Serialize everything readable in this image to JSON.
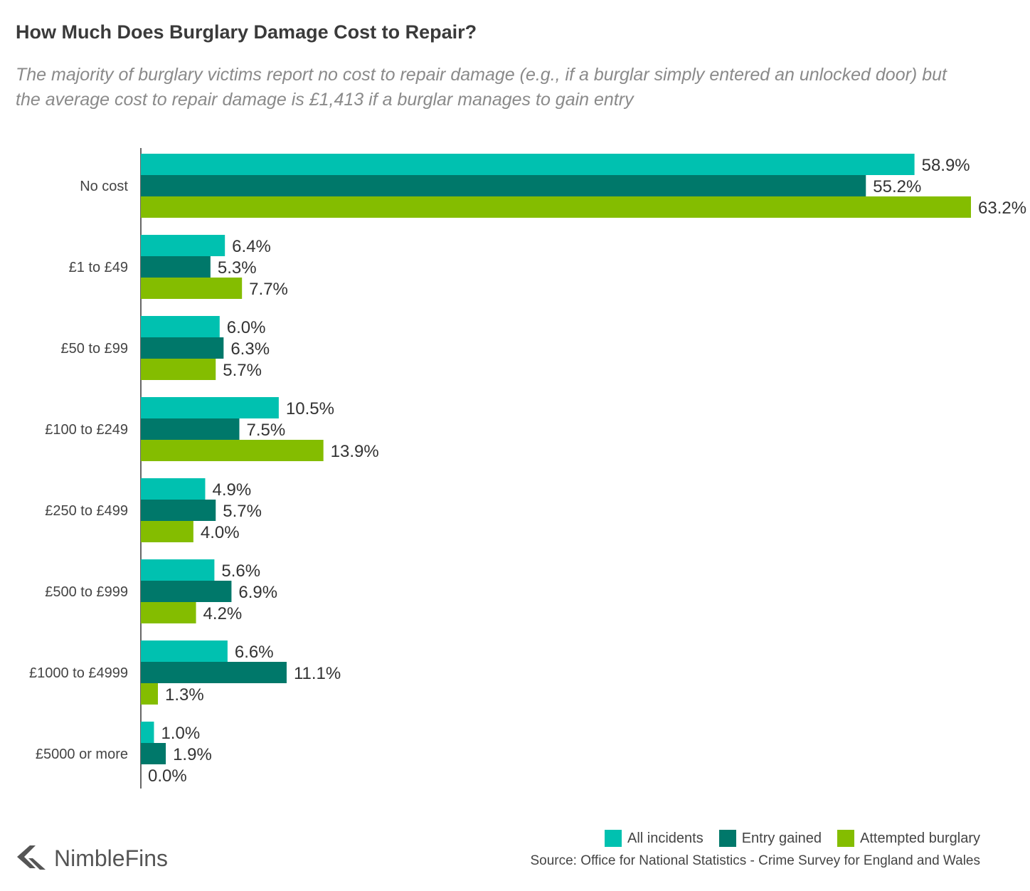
{
  "chart_data": {
    "type": "bar",
    "orientation": "horizontal",
    "title": "How Much Does Burglary Damage Cost to Repair?",
    "subtitle": "The majority of burglary victims report no cost to repair damage (e.g., if a burglar simply entered an unlocked door) but the average cost to repair damage is £1,413 if a burglar manages to gain entry",
    "categories": [
      "No cost",
      "£1 to £49",
      "£50 to £99",
      "£100 to £249",
      "£250 to £499",
      "£500 to £999",
      "£1000 to £4999",
      "£5000 or more"
    ],
    "series": [
      {
        "name": "All incidents",
        "color": "#00c1b0",
        "values": [
          58.9,
          6.4,
          6.0,
          10.5,
          4.9,
          5.6,
          6.6,
          1.0
        ],
        "labels": [
          "58.9%",
          "6.4%",
          "6.0%",
          "10.5%",
          "4.9%",
          "5.6%",
          "6.6%",
          "1.0%"
        ]
      },
      {
        "name": "Entry gained",
        "color": "#00786a",
        "values": [
          55.2,
          5.3,
          6.3,
          7.5,
          5.7,
          6.9,
          11.1,
          1.9
        ],
        "labels": [
          "55.2%",
          "5.3%",
          "6.3%",
          "7.5%",
          "5.7%",
          "6.9%",
          "11.1%",
          "1.9%"
        ]
      },
      {
        "name": "Attempted burglary",
        "color": "#84bd00",
        "values": [
          63.2,
          7.7,
          5.7,
          13.9,
          4.0,
          4.2,
          1.3,
          0.0
        ],
        "labels": [
          "63.2%",
          "7.7%",
          "5.7%",
          "13.9%",
          "4.0%",
          "4.2%",
          "1.3%",
          "0.0%"
        ]
      }
    ],
    "xlim": [
      0,
      63.2
    ],
    "grid": false,
    "legend_position": "bottom-right",
    "source": "Source: Office for National Statistics - Crime Survey for England and Wales"
  },
  "brand": {
    "name": "NimbleFins",
    "logo_icon": "chevron-left-icon"
  }
}
